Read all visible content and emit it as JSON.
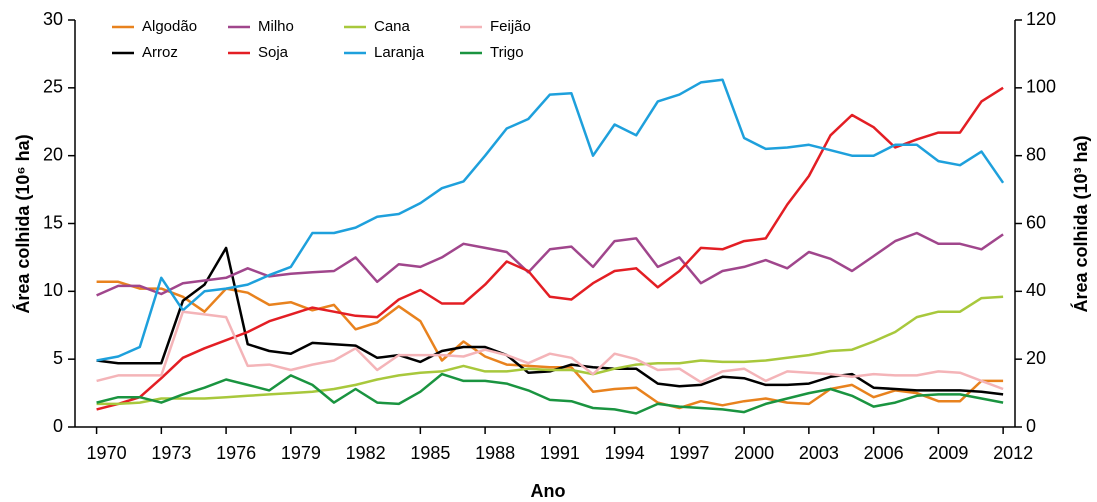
{
  "chart_data": {
    "type": "line",
    "xlabel": "Ano",
    "ylabel": "Área colhida (10⁶ ha)",
    "y2label": "Área colhida (10³ ha)",
    "x": [
      1970,
      1971,
      1972,
      1973,
      1974,
      1975,
      1976,
      1977,
      1978,
      1979,
      1980,
      1981,
      1982,
      1983,
      1984,
      1985,
      1986,
      1987,
      1988,
      1989,
      1990,
      1991,
      1992,
      1993,
      1994,
      1995,
      1996,
      1997,
      1998,
      1999,
      2000,
      2001,
      2002,
      2003,
      2004,
      2005,
      2006,
      2007,
      2008,
      2009,
      2010,
      2011,
      2012
    ],
    "xlim": [
      1969,
      2012.55
    ],
    "xticks": [
      1970,
      1973,
      1976,
      1979,
      1982,
      1985,
      1988,
      1991,
      1994,
      1997,
      2000,
      2003,
      2006,
      2009,
      2012
    ],
    "ylim": [
      0,
      30
    ],
    "yticks": [
      0,
      5,
      10,
      15,
      20,
      25,
      30
    ],
    "y2lim": [
      0,
      120
    ],
    "y2ticks": [
      0,
      20,
      40,
      60,
      80,
      100,
      120
    ],
    "legend": "top-left",
    "series": [
      {
        "name": "Algodão",
        "color": "#e8821e",
        "values": [
          10.7,
          10.7,
          10.2,
          10.2,
          9.6,
          8.5,
          10.2,
          9.9,
          9.0,
          9.2,
          8.6,
          9.0,
          7.2,
          7.7,
          8.9,
          7.8,
          4.9,
          6.3,
          5.2,
          4.6,
          4.5,
          4.4,
          4.4,
          2.6,
          2.8,
          2.9,
          1.8,
          1.4,
          1.9,
          1.6,
          1.9,
          2.1,
          1.8,
          1.7,
          2.8,
          3.1,
          2.2,
          2.7,
          2.5,
          1.9,
          1.9,
          3.4,
          3.4
        ]
      },
      {
        "name": "Arroz",
        "color": "#000000",
        "values": [
          4.9,
          4.7,
          4.7,
          4.7,
          9.3,
          10.5,
          13.2,
          6.1,
          5.6,
          5.4,
          6.2,
          6.1,
          6.0,
          5.1,
          5.3,
          4.8,
          5.6,
          5.9,
          5.9,
          5.3,
          4.0,
          4.1,
          4.6,
          4.4,
          4.3,
          4.3,
          3.2,
          3.0,
          3.1,
          3.7,
          3.6,
          3.1,
          3.1,
          3.2,
          3.7,
          3.9,
          2.9,
          2.8,
          2.7,
          2.7,
          2.7,
          2.6,
          2.4
        ]
      },
      {
        "name": "Milho",
        "color": "#a0468c",
        "values": [
          9.7,
          10.4,
          10.4,
          9.8,
          10.6,
          10.8,
          11.0,
          11.7,
          11.1,
          11.3,
          11.4,
          11.5,
          12.5,
          10.7,
          12.0,
          11.8,
          12.5,
          13.5,
          13.2,
          12.9,
          11.4,
          13.1,
          13.3,
          11.8,
          13.7,
          13.9,
          11.8,
          12.5,
          10.6,
          11.5,
          11.8,
          12.3,
          11.7,
          12.9,
          12.4,
          11.5,
          12.6,
          13.7,
          14.3,
          13.5,
          13.5,
          13.1,
          14.2
        ]
      },
      {
        "name": "Soja",
        "color": "#e31e24",
        "values": [
          1.3,
          1.7,
          2.2,
          3.6,
          5.1,
          5.8,
          6.4,
          7.0,
          7.8,
          8.3,
          8.8,
          8.5,
          8.2,
          8.1,
          9.4,
          10.1,
          9.1,
          9.1,
          10.5,
          12.2,
          11.5,
          9.6,
          9.4,
          10.6,
          11.5,
          11.7,
          10.3,
          11.5,
          13.2,
          13.1,
          13.7,
          13.9,
          16.4,
          18.5,
          21.5,
          23.0,
          22.1,
          20.6,
          21.2,
          21.7,
          21.7,
          24.0,
          25.0
        ]
      },
      {
        "name": "Cana",
        "color": "#a8c83c",
        "values": [
          1.7,
          1.7,
          1.8,
          2.1,
          2.1,
          2.1,
          2.2,
          2.3,
          2.4,
          2.5,
          2.6,
          2.8,
          3.1,
          3.5,
          3.8,
          4.0,
          4.1,
          4.5,
          4.1,
          4.1,
          4.3,
          4.2,
          4.2,
          3.9,
          4.3,
          4.6,
          4.7,
          4.7,
          4.9,
          4.8,
          4.8,
          4.9,
          5.1,
          5.3,
          5.6,
          5.7,
          6.3,
          7.0,
          8.1,
          8.5,
          8.5,
          9.5,
          9.6
        ]
      },
      {
        "name": "Laranja",
        "color": "#1ea0dc",
        "axis": "y2",
        "values": [
          19.6,
          20.8,
          23.6,
          44,
          34.4,
          40,
          40.8,
          42,
          44.8,
          47.2,
          57.2,
          57.2,
          58.8,
          62,
          62.8,
          66,
          70.4,
          72.4,
          80,
          88,
          90.8,
          98,
          98.4,
          80,
          89.2,
          86,
          96,
          98,
          101.6,
          102.4,
          85.2,
          82,
          82.4,
          83.2,
          81.6,
          80,
          80,
          83.2,
          83.2,
          78.4,
          77.2,
          81.2,
          72
        ]
      },
      {
        "name": "Feijão",
        "color": "#f4b4b8",
        "values": [
          3.4,
          3.8,
          3.8,
          3.8,
          8.5,
          8.3,
          8.1,
          4.5,
          4.6,
          4.2,
          4.6,
          4.9,
          5.8,
          4.2,
          5.3,
          5.3,
          5.3,
          5.2,
          5.7,
          5.3,
          4.7,
          5.4,
          5.1,
          3.9,
          5.4,
          5.0,
          4.2,
          4.3,
          3.3,
          4.1,
          4.3,
          3.4,
          4.1,
          4.0,
          3.9,
          3.7,
          3.9,
          3.8,
          3.8,
          4.1,
          4.0,
          3.4,
          2.8
        ]
      },
      {
        "name": "Trigo",
        "color": "#1a9440",
        "values": [
          1.8,
          2.2,
          2.2,
          1.8,
          2.4,
          2.9,
          3.5,
          3.1,
          2.7,
          3.8,
          3.1,
          1.8,
          2.8,
          1.8,
          1.7,
          2.6,
          3.9,
          3.4,
          3.4,
          3.2,
          2.7,
          2.0,
          1.9,
          1.4,
          1.3,
          1.0,
          1.7,
          1.5,
          1.4,
          1.3,
          1.1,
          1.7,
          2.1,
          2.5,
          2.8,
          2.3,
          1.5,
          1.8,
          2.3,
          2.4,
          2.4,
          2.1,
          1.8
        ]
      }
    ]
  }
}
